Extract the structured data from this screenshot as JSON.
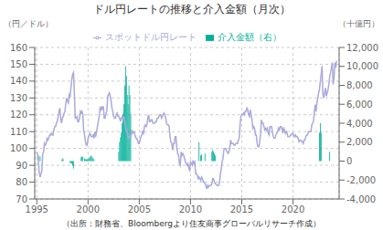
{
  "chart_data": {
    "type": "combo",
    "title": "ドル円レートの推移と介入金額（月次）",
    "source": "（出所：財務省、Bloombergより住友商事グローバルリサーチ作成）",
    "ylabel": "（円／ドル）",
    "y2label": "（十億円）",
    "xlim": [
      1994.8,
      2024.5
    ],
    "xticks": [
      1995,
      2000,
      2005,
      2010,
      2015,
      2020
    ],
    "ylim": [
      70,
      160
    ],
    "yticks": [
      70,
      80,
      90,
      100,
      110,
      120,
      130,
      140,
      150,
      160
    ],
    "y2lim": [
      -4000,
      12000
    ],
    "y2ticks": [
      {
        "value": -4000,
        "label": "-4,000"
      },
      {
        "value": -2000,
        "label": "-2,000"
      },
      0,
      {
        "value": 2000,
        "label": "2,000"
      },
      {
        "value": 4000,
        "label": "4,000"
      },
      {
        "value": 6000,
        "label": "6,000"
      },
      {
        "value": 8000,
        "label": "8,000"
      },
      {
        "value": 10000,
        "label": "10,000"
      },
      {
        "value": 12000,
        "label": "12,000"
      }
    ],
    "grid": true,
    "legend": "top",
    "series": [
      {
        "name": "介入金額（右）",
        "type": "bar",
        "color": "#00B09A",
        "axis": "y2",
        "x": [
          1995.167,
          1995.333,
          1997.417,
          1997.5,
          1997.583,
          1998.25,
          1998.333,
          1998.417,
          1998.5,
          1998.583,
          1999.333,
          1999.417,
          1999.5,
          1999.667,
          1999.75,
          1999.833,
          1999.917,
          2000.0,
          2000.083,
          2000.167,
          2000.25,
          2000.333,
          2000.417,
          2000.5,
          2000.583,
          2003.0,
          2003.083,
          2003.167,
          2003.25,
          2003.333,
          2003.417,
          2003.5,
          2003.583,
          2003.667,
          2003.75,
          2003.833,
          2003.917,
          2004.0,
          2004.083,
          2004.167,
          2010.833,
          2011.0,
          2011.083,
          2011.417,
          2012.083,
          2012.167,
          2012.25,
          2012.333,
          2012.417,
          2022.583,
          2022.667,
          2022.75,
          2023.583
        ],
        "values": [
          600,
          500,
          100,
          300,
          200,
          -200,
          -200,
          -300,
          -500,
          -800,
          400,
          500,
          400,
          300,
          200,
          200,
          200,
          200,
          300,
          400,
          500,
          600,
          400,
          300,
          200,
          1000,
          2000,
          2500,
          3000,
          4000,
          5000,
          6000,
          8000,
          10000,
          9000,
          7000,
          6000,
          8000,
          7000,
          5000,
          2000,
          600,
          700,
          800,
          1000,
          1200,
          1000,
          800,
          600,
          3000,
          4000,
          3000,
          1000
        ]
      },
      {
        "name": "スポットドル円レート",
        "type": "line",
        "color": "#AAAADD",
        "x": [
          1995.0,
          1995.083,
          1995.167,
          1995.25,
          1995.333,
          1995.417,
          1995.5,
          1995.583,
          1995.667,
          1995.75,
          1995.833,
          1995.917,
          1996.0,
          1996.083,
          1996.167,
          1996.25,
          1996.333,
          1996.417,
          1996.5,
          1996.583,
          1996.667,
          1996.75,
          1996.833,
          1996.917,
          1997.0,
          1997.083,
          1997.167,
          1997.25,
          1997.333,
          1997.417,
          1997.5,
          1997.583,
          1997.667,
          1997.75,
          1997.833,
          1997.917,
          1998.0,
          1998.083,
          1998.167,
          1998.25,
          1998.333,
          1998.417,
          1998.5,
          1998.583,
          1998.667,
          1998.75,
          1998.833,
          1998.917,
          1999.0,
          1999.083,
          1999.167,
          1999.25,
          1999.333,
          1999.417,
          1999.5,
          1999.583,
          1999.667,
          1999.75,
          1999.833,
          1999.917,
          2000.0,
          2000.083,
          2000.167,
          2000.25,
          2000.333,
          2000.417,
          2000.5,
          2000.583,
          2000.667,
          2000.75,
          2000.833,
          2000.917,
          2001.0,
          2001.083,
          2001.167,
          2001.25,
          2001.333,
          2001.417,
          2001.5,
          2001.583,
          2001.667,
          2001.75,
          2001.833,
          2001.917,
          2002.0,
          2002.083,
          2002.167,
          2002.25,
          2002.333,
          2002.417,
          2002.5,
          2002.583,
          2002.667,
          2002.75,
          2002.833,
          2002.917,
          2003.0,
          2003.083,
          2003.167,
          2003.25,
          2003.333,
          2003.417,
          2003.5,
          2003.583,
          2003.667,
          2003.75,
          2003.833,
          2003.917,
          2004.0,
          2004.083,
          2004.167,
          2004.25,
          2004.333,
          2004.417,
          2004.5,
          2004.583,
          2004.667,
          2004.75,
          2004.833,
          2004.917,
          2005.0,
          2005.083,
          2005.167,
          2005.25,
          2005.333,
          2005.417,
          2005.5,
          2005.583,
          2005.667,
          2005.75,
          2005.833,
          2005.917,
          2006.0,
          2006.083,
          2006.167,
          2006.25,
          2006.333,
          2006.417,
          2006.5,
          2006.583,
          2006.667,
          2006.75,
          2006.833,
          2006.917,
          2007.0,
          2007.083,
          2007.167,
          2007.25,
          2007.333,
          2007.417,
          2007.5,
          2007.583,
          2007.667,
          2007.75,
          2007.833,
          2007.917,
          2008.0,
          2008.083,
          2008.167,
          2008.25,
          2008.333,
          2008.417,
          2008.5,
          2008.583,
          2008.667,
          2008.75,
          2008.833,
          2008.917,
          2009.0,
          2009.083,
          2009.167,
          2009.25,
          2009.333,
          2009.417,
          2009.5,
          2009.583,
          2009.667,
          2009.75,
          2009.833,
          2009.917,
          2010.0,
          2010.083,
          2010.167,
          2010.25,
          2010.333,
          2010.417,
          2010.5,
          2010.583,
          2010.667,
          2010.75,
          2010.833,
          2010.917,
          2011.0,
          2011.083,
          2011.167,
          2011.25,
          2011.333,
          2011.417,
          2011.5,
          2011.583,
          2011.667,
          2011.75,
          2011.833,
          2011.917,
          2012.0,
          2012.083,
          2012.167,
          2012.25,
          2012.333,
          2012.417,
          2012.5,
          2012.583,
          2012.667,
          2012.75,
          2012.833,
          2012.917,
          2013.0,
          2013.083,
          2013.167,
          2013.25,
          2013.333,
          2013.417,
          2013.5,
          2013.583,
          2013.667,
          2013.75,
          2013.833,
          2013.917,
          2014.0,
          2014.083,
          2014.167,
          2014.25,
          2014.333,
          2014.417,
          2014.5,
          2014.583,
          2014.667,
          2014.75,
          2014.833,
          2014.917,
          2015.0,
          2015.083,
          2015.167,
          2015.25,
          2015.333,
          2015.417,
          2015.5,
          2015.583,
          2015.667,
          2015.75,
          2015.833,
          2015.917,
          2016.0,
          2016.083,
          2016.167,
          2016.25,
          2016.333,
          2016.417,
          2016.5,
          2016.583,
          2016.667,
          2016.75,
          2016.833,
          2016.917,
          2017.0,
          2017.083,
          2017.167,
          2017.25,
          2017.333,
          2017.417,
          2017.5,
          2017.583,
          2017.667,
          2017.75,
          2017.833,
          2017.917,
          2018.0,
          2018.083,
          2018.167,
          2018.25,
          2018.333,
          2018.417,
          2018.5,
          2018.583,
          2018.667,
          2018.75,
          2018.833,
          2018.917,
          2019.0,
          2019.083,
          2019.167,
          2019.25,
          2019.333,
          2019.417,
          2019.5,
          2019.583,
          2019.667,
          2019.75,
          2019.833,
          2019.917,
          2020.0,
          2020.083,
          2020.167,
          2020.25,
          2020.333,
          2020.417,
          2020.5,
          2020.583,
          2020.667,
          2020.75,
          2020.833,
          2020.917,
          2021.0,
          2021.083,
          2021.167,
          2021.25,
          2021.333,
          2021.417,
          2021.5,
          2021.583,
          2021.667,
          2021.75,
          2021.833,
          2021.917,
          2022.0,
          2022.083,
          2022.167,
          2022.25,
          2022.333,
          2022.417,
          2022.5,
          2022.583,
          2022.667,
          2022.75,
          2022.833,
          2022.917,
          2023.0,
          2023.083,
          2023.167,
          2023.25,
          2023.333,
          2023.417,
          2023.5,
          2023.583,
          2023.667,
          2023.75,
          2023.833,
          2023.917,
          2024.0,
          2024.083,
          2024.167,
          2024.25
        ],
        "values": [
          98,
          96,
          92,
          85,
          83,
          85,
          87,
          97,
          98,
          103,
          102,
          103,
          106,
          105,
          106,
          108,
          108,
          109,
          108,
          108,
          111,
          113,
          113,
          115,
          116,
          119,
          122,
          124,
          118,
          115,
          118,
          119,
          121,
          122,
          127,
          130,
          128,
          127,
          132,
          131,
          136,
          141,
          144,
          145,
          133,
          118,
          118,
          119,
          116,
          116,
          118,
          122,
          121,
          122,
          120,
          110,
          108,
          104,
          102,
          102,
          106,
          107,
          109,
          108,
          107,
          107,
          108,
          106,
          110,
          107,
          110,
          113,
          116,
          119,
          124,
          123,
          125,
          123,
          125,
          118,
          118,
          121,
          122,
          131,
          132,
          133,
          131,
          128,
          124,
          122,
          119,
          118,
          118,
          120,
          121,
          119,
          119,
          118,
          116,
          118,
          119,
          117,
          119,
          116,
          113,
          110,
          110,
          106,
          107,
          107,
          107,
          111,
          109,
          110,
          110,
          108,
          106,
          106,
          105,
          103,
          103,
          105,
          107,
          108,
          110,
          109,
          113,
          114,
          113,
          114,
          118,
          120,
          116,
          116,
          117,
          117,
          115,
          115,
          115,
          116,
          116,
          118,
          118,
          119,
          120,
          120,
          118,
          119,
          120,
          121,
          120,
          118,
          115,
          114,
          114,
          113,
          107,
          104,
          103,
          99,
          103,
          103,
          107,
          107,
          100,
          97,
          96,
          91,
          90,
          98,
          96,
          97,
          96,
          94,
          92,
          91,
          90,
          91,
          88,
          87,
          92,
          91,
          90,
          93,
          91,
          92,
          85,
          85,
          84,
          82,
          83,
          82,
          81,
          83,
          82,
          80,
          80,
          79,
          78,
          76,
          78,
          77,
          78,
          78,
          78,
          79,
          82,
          82,
          80,
          79,
          79,
          78,
          78,
          78,
          80,
          85,
          88,
          92,
          94,
          99,
          100,
          100,
          99,
          98,
          97,
          98,
          100,
          105,
          103,
          103,
          103,
          102,
          102,
          103,
          103,
          103,
          105,
          106,
          114,
          119,
          120,
          120,
          121,
          120,
          122,
          122,
          124,
          123,
          120,
          119,
          123,
          120,
          117,
          112,
          113,
          112,
          108,
          108,
          103,
          101,
          101,
          104,
          108,
          117,
          115,
          115,
          113,
          111,
          112,
          111,
          112,
          109,
          108,
          113,
          113,
          113,
          109,
          107,
          106,
          106,
          108,
          109,
          110,
          112,
          111,
          113,
          113,
          112,
          109,
          112,
          111,
          109,
          110,
          109,
          107,
          107,
          107,
          108,
          108,
          109,
          109,
          108,
          107,
          108,
          107,
          107,
          106,
          104,
          105,
          105,
          104,
          104,
          103,
          105,
          105,
          107,
          108,
          108,
          110,
          110,
          110,
          110,
          114,
          115,
          116,
          122,
          126,
          122,
          127,
          130,
          133,
          135,
          140,
          144,
          149,
          132,
          130,
          133,
          136,
          131,
          133,
          135,
          138,
          143,
          145,
          148,
          151,
          138,
          142,
          151,
          148,
          152
        ]
      }
    ]
  }
}
